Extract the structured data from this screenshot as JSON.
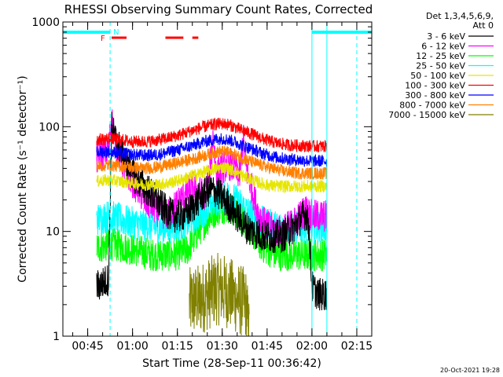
{
  "chart_data": {
    "type": "line",
    "title": "RHESSI Observing Summary Count Rates, Corrected",
    "xlabel": "Start Time (28-Sep-11 00:36:42)",
    "ylabel": "Corrected Count Rate (s⁻¹ detector⁻¹)",
    "y_scale": "log",
    "ylim": [
      1,
      1000
    ],
    "xlim_minutes": [
      36.7,
      140
    ],
    "x_ticks": [
      {
        "t": 45,
        "label": "00:45"
      },
      {
        "t": 60,
        "label": "01:00"
      },
      {
        "t": 75,
        "label": "01:15"
      },
      {
        "t": 90,
        "label": "01:30"
      },
      {
        "t": 105,
        "label": "01:45"
      },
      {
        "t": 120,
        "label": "02:00"
      },
      {
        "t": 135,
        "label": "02:15"
      }
    ],
    "y_ticks": [
      {
        "v": 1,
        "label": "1"
      },
      {
        "v": 10,
        "label": "10"
      },
      {
        "v": 100,
        "label": "100"
      },
      {
        "v": 1000,
        "label": "1000"
      }
    ],
    "legend": {
      "placement": "right",
      "header": "Det 1,3,4,5,6,9,",
      "header2": "Att 0",
      "entries": [
        {
          "label": "3 - 6 keV",
          "color": "#000000"
        },
        {
          "label": "6 - 12 keV",
          "color": "#ff00ff"
        },
        {
          "label": "12 - 25 keV",
          "color": "#00ff00"
        },
        {
          "label": "25 - 50 keV",
          "color": "#00ffff"
        },
        {
          "label": "50 - 100 keV",
          "color": "#e6e600"
        },
        {
          "label": "100 - 300 keV",
          "color": "#ff0000"
        },
        {
          "label": "300 - 800 keV",
          "color": "#0000ff"
        },
        {
          "label": "800 - 7000 keV",
          "color": "#ff8000"
        },
        {
          "label": "7000 - 15000 keV",
          "color": "#808000"
        }
      ]
    },
    "flags": {
      "flare_label": "F",
      "night_label": "N",
      "flare_color": "#ff0000",
      "night_color": "#00ffff",
      "night_bars": [
        [
          36.7,
          52.5
        ],
        [
          120,
          140
        ]
      ],
      "flare_bars": [
        [
          53,
          58
        ],
        [
          71,
          77
        ],
        [
          80,
          82
        ]
      ]
    },
    "night_boundaries_minutes": [
      52.5,
      120
    ],
    "saa_boundaries_minutes": [
      36.7,
      125,
      135
    ],
    "data_window_minutes": [
      48,
      125
    ],
    "series": [
      {
        "name": "3 - 6 keV",
        "color": "#000000",
        "points": [
          [
            48,
            3
          ],
          [
            50,
            3.2
          ],
          [
            52,
            3.5
          ],
          [
            53,
            100
          ],
          [
            54,
            80
          ],
          [
            56,
            60
          ],
          [
            58,
            45
          ],
          [
            60,
            35
          ],
          [
            62,
            30
          ],
          [
            65,
            25
          ],
          [
            68,
            20
          ],
          [
            70,
            17
          ],
          [
            72,
            15
          ],
          [
            74,
            14
          ],
          [
            76,
            14
          ],
          [
            78,
            15
          ],
          [
            80,
            17
          ],
          [
            82,
            20
          ],
          [
            84,
            23
          ],
          [
            86,
            25
          ],
          [
            88,
            24
          ],
          [
            90,
            21
          ],
          [
            92,
            18
          ],
          [
            94,
            15
          ],
          [
            96,
            13
          ],
          [
            98,
            11
          ],
          [
            100,
            10
          ],
          [
            102,
            9.5
          ],
          [
            104,
            9
          ],
          [
            106,
            9
          ],
          [
            108,
            9
          ],
          [
            110,
            9
          ],
          [
            112,
            10
          ],
          [
            114,
            11
          ],
          [
            116,
            13
          ],
          [
            118,
            15
          ],
          [
            119,
            11
          ],
          [
            120,
            3
          ],
          [
            122,
            2.5
          ],
          [
            125,
            2.5
          ]
        ]
      },
      {
        "name": "6 - 12 keV",
        "color": "#ff00ff",
        "points": [
          [
            48,
            50
          ],
          [
            52,
            60
          ],
          [
            53,
            120
          ],
          [
            54,
            75
          ],
          [
            56,
            50
          ],
          [
            58,
            38
          ],
          [
            60,
            30
          ],
          [
            62,
            25
          ],
          [
            64,
            20
          ],
          [
            66,
            18
          ],
          [
            68,
            16
          ],
          [
            70,
            15
          ],
          [
            72,
            15
          ],
          [
            74,
            17
          ],
          [
            76,
            20
          ],
          [
            78,
            23
          ],
          [
            80,
            26
          ],
          [
            82,
            24
          ],
          [
            84,
            22
          ],
          [
            86,
            40
          ],
          [
            87,
            85
          ],
          [
            88,
            35
          ],
          [
            90,
            40
          ],
          [
            92,
            45
          ],
          [
            94,
            40
          ],
          [
            96,
            35
          ],
          [
            97,
            80
          ],
          [
            98,
            40
          ],
          [
            100,
            25
          ],
          [
            102,
            15
          ],
          [
            104,
            12
          ],
          [
            106,
            11
          ],
          [
            108,
            10
          ],
          [
            110,
            10
          ],
          [
            112,
            11
          ],
          [
            114,
            12
          ],
          [
            116,
            14
          ],
          [
            118,
            16
          ],
          [
            120,
            14
          ],
          [
            125,
            14
          ]
        ]
      },
      {
        "name": "12 - 25 keV",
        "color": "#00ff00",
        "points": [
          [
            48,
            7
          ],
          [
            52,
            7.5
          ],
          [
            54,
            7.5
          ],
          [
            58,
            7
          ],
          [
            62,
            6.5
          ],
          [
            66,
            6
          ],
          [
            70,
            6
          ],
          [
            74,
            6
          ],
          [
            78,
            6.5
          ],
          [
            80,
            8
          ],
          [
            82,
            10
          ],
          [
            84,
            12
          ],
          [
            86,
            14
          ],
          [
            88,
            16
          ],
          [
            90,
            17
          ],
          [
            92,
            17
          ],
          [
            94,
            16
          ],
          [
            96,
            14
          ],
          [
            98,
            12
          ],
          [
            100,
            10
          ],
          [
            102,
            8
          ],
          [
            104,
            7
          ],
          [
            106,
            6.5
          ],
          [
            108,
            6
          ],
          [
            112,
            6
          ],
          [
            116,
            6
          ],
          [
            120,
            6
          ],
          [
            125,
            6
          ]
        ]
      },
      {
        "name": "25 - 50 keV",
        "color": "#00ffff",
        "points": [
          [
            48,
            13
          ],
          [
            52,
            14
          ],
          [
            56,
            13
          ],
          [
            60,
            12
          ],
          [
            64,
            11.5
          ],
          [
            68,
            11
          ],
          [
            72,
            11
          ],
          [
            76,
            11.5
          ],
          [
            80,
            13
          ],
          [
            84,
            16
          ],
          [
            88,
            20
          ],
          [
            90,
            21
          ],
          [
            92,
            22
          ],
          [
            94,
            20
          ],
          [
            96,
            18
          ],
          [
            98,
            16
          ],
          [
            100,
            14
          ],
          [
            104,
            12
          ],
          [
            108,
            11
          ],
          [
            112,
            11
          ],
          [
            116,
            11
          ],
          [
            120,
            11
          ],
          [
            125,
            11
          ]
        ]
      },
      {
        "name": "50 - 100 keV",
        "color": "#e6e600",
        "points": [
          [
            48,
            30
          ],
          [
            52,
            31
          ],
          [
            56,
            30
          ],
          [
            60,
            29
          ],
          [
            64,
            28
          ],
          [
            68,
            28
          ],
          [
            72,
            29
          ],
          [
            76,
            31
          ],
          [
            80,
            34
          ],
          [
            84,
            37
          ],
          [
            88,
            40
          ],
          [
            90,
            41
          ],
          [
            92,
            40
          ],
          [
            94,
            38
          ],
          [
            96,
            35
          ],
          [
            100,
            31
          ],
          [
            104,
            28
          ],
          [
            108,
            27
          ],
          [
            112,
            27
          ],
          [
            116,
            27
          ],
          [
            120,
            27
          ],
          [
            125,
            27
          ]
        ]
      },
      {
        "name": "100 - 300 keV",
        "color": "#ff0000",
        "points": [
          [
            48,
            75
          ],
          [
            52,
            77
          ],
          [
            56,
            75
          ],
          [
            60,
            72
          ],
          [
            64,
            72
          ],
          [
            68,
            74
          ],
          [
            72,
            78
          ],
          [
            76,
            84
          ],
          [
            80,
            92
          ],
          [
            84,
            100
          ],
          [
            88,
            106
          ],
          [
            90,
            107
          ],
          [
            92,
            105
          ],
          [
            94,
            100
          ],
          [
            96,
            94
          ],
          [
            100,
            85
          ],
          [
            104,
            76
          ],
          [
            108,
            70
          ],
          [
            112,
            67
          ],
          [
            116,
            66
          ],
          [
            120,
            65
          ],
          [
            125,
            65
          ]
        ]
      },
      {
        "name": "300 - 800 keV",
        "color": "#0000ff",
        "points": [
          [
            48,
            57
          ],
          [
            52,
            58
          ],
          [
            56,
            56
          ],
          [
            60,
            54
          ],
          [
            64,
            53
          ],
          [
            68,
            54
          ],
          [
            72,
            57
          ],
          [
            76,
            61
          ],
          [
            80,
            66
          ],
          [
            84,
            72
          ],
          [
            88,
            76
          ],
          [
            90,
            77
          ],
          [
            92,
            75
          ],
          [
            94,
            72
          ],
          [
            96,
            68
          ],
          [
            100,
            61
          ],
          [
            104,
            55
          ],
          [
            108,
            51
          ],
          [
            112,
            49
          ],
          [
            116,
            48
          ],
          [
            120,
            47
          ],
          [
            125,
            47
          ]
        ]
      },
      {
        "name": "800 - 7000 keV",
        "color": "#ff8000",
        "points": [
          [
            48,
            42
          ],
          [
            52,
            43
          ],
          [
            56,
            42
          ],
          [
            60,
            41
          ],
          [
            64,
            40
          ],
          [
            68,
            41
          ],
          [
            72,
            43
          ],
          [
            76,
            46
          ],
          [
            80,
            49
          ],
          [
            84,
            53
          ],
          [
            88,
            57
          ],
          [
            90,
            58
          ],
          [
            92,
            57
          ],
          [
            94,
            54
          ],
          [
            96,
            51
          ],
          [
            100,
            46
          ],
          [
            104,
            42
          ],
          [
            108,
            39
          ],
          [
            112,
            37
          ],
          [
            116,
            36
          ],
          [
            120,
            36
          ],
          [
            125,
            36
          ]
        ]
      },
      {
        "name": "7000 - 15000 keV",
        "color": "#808000",
        "points": [
          [
            79,
            2
          ],
          [
            80,
            2.2
          ],
          [
            82,
            2.2
          ],
          [
            84,
            2.4
          ],
          [
            86,
            2.6
          ],
          [
            88,
            2.8
          ],
          [
            90,
            2.8
          ],
          [
            92,
            2.6
          ],
          [
            94,
            2.4
          ],
          [
            96,
            2.2
          ],
          [
            98,
            2
          ],
          [
            99,
            1
          ]
        ]
      }
    ]
  },
  "timestamp": "20-Oct-2021 19:28"
}
